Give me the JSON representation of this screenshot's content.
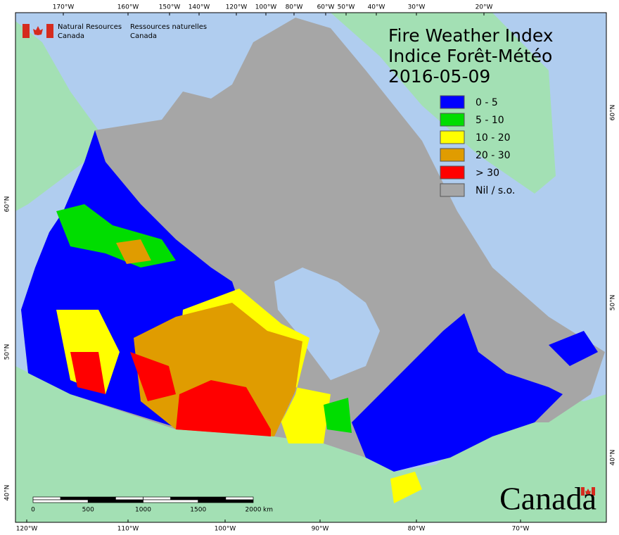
{
  "header": {
    "agency_en": [
      "Natural Resources",
      "Canada"
    ],
    "agency_fr": [
      "Ressources naturelles",
      "Canada"
    ]
  },
  "title": {
    "en": "Fire Weather Index",
    "fr": "Indice Forêt-Météo",
    "date": "2016-05-09"
  },
  "legend": [
    {
      "label": "0 - 5",
      "color": "#0000ff"
    },
    {
      "label": "5 - 10",
      "color": "#00dd00"
    },
    {
      "label": "10 - 20",
      "color": "#ffff00"
    },
    {
      "label": "20 - 30",
      "color": "#e09c00"
    },
    {
      "label": "> 30",
      "color": "#ff0000"
    },
    {
      "label": "Nil / s.o.",
      "color": "#a6a6a6"
    }
  ],
  "top_labels": [
    "170°W",
    "160°W",
    "150°W",
    "140°W",
    "120°W",
    "100°W",
    "80°W",
    "60°W",
    "50°W",
    "40°W",
    "30°W",
    "20°W"
  ],
  "bottom_labels": [
    "120°W",
    "110°W",
    "100°W",
    "90°W",
    "80°W",
    "70°W"
  ],
  "left_labels": [
    "60°N",
    "50°N",
    "40°N"
  ],
  "right_labels": [
    "60°N",
    "50°N",
    "40°N"
  ],
  "scale_bar": {
    "ticks": [
      0,
      500,
      1000,
      1500,
      2000
    ],
    "unit": "km"
  },
  "wordmark": "Canada"
}
